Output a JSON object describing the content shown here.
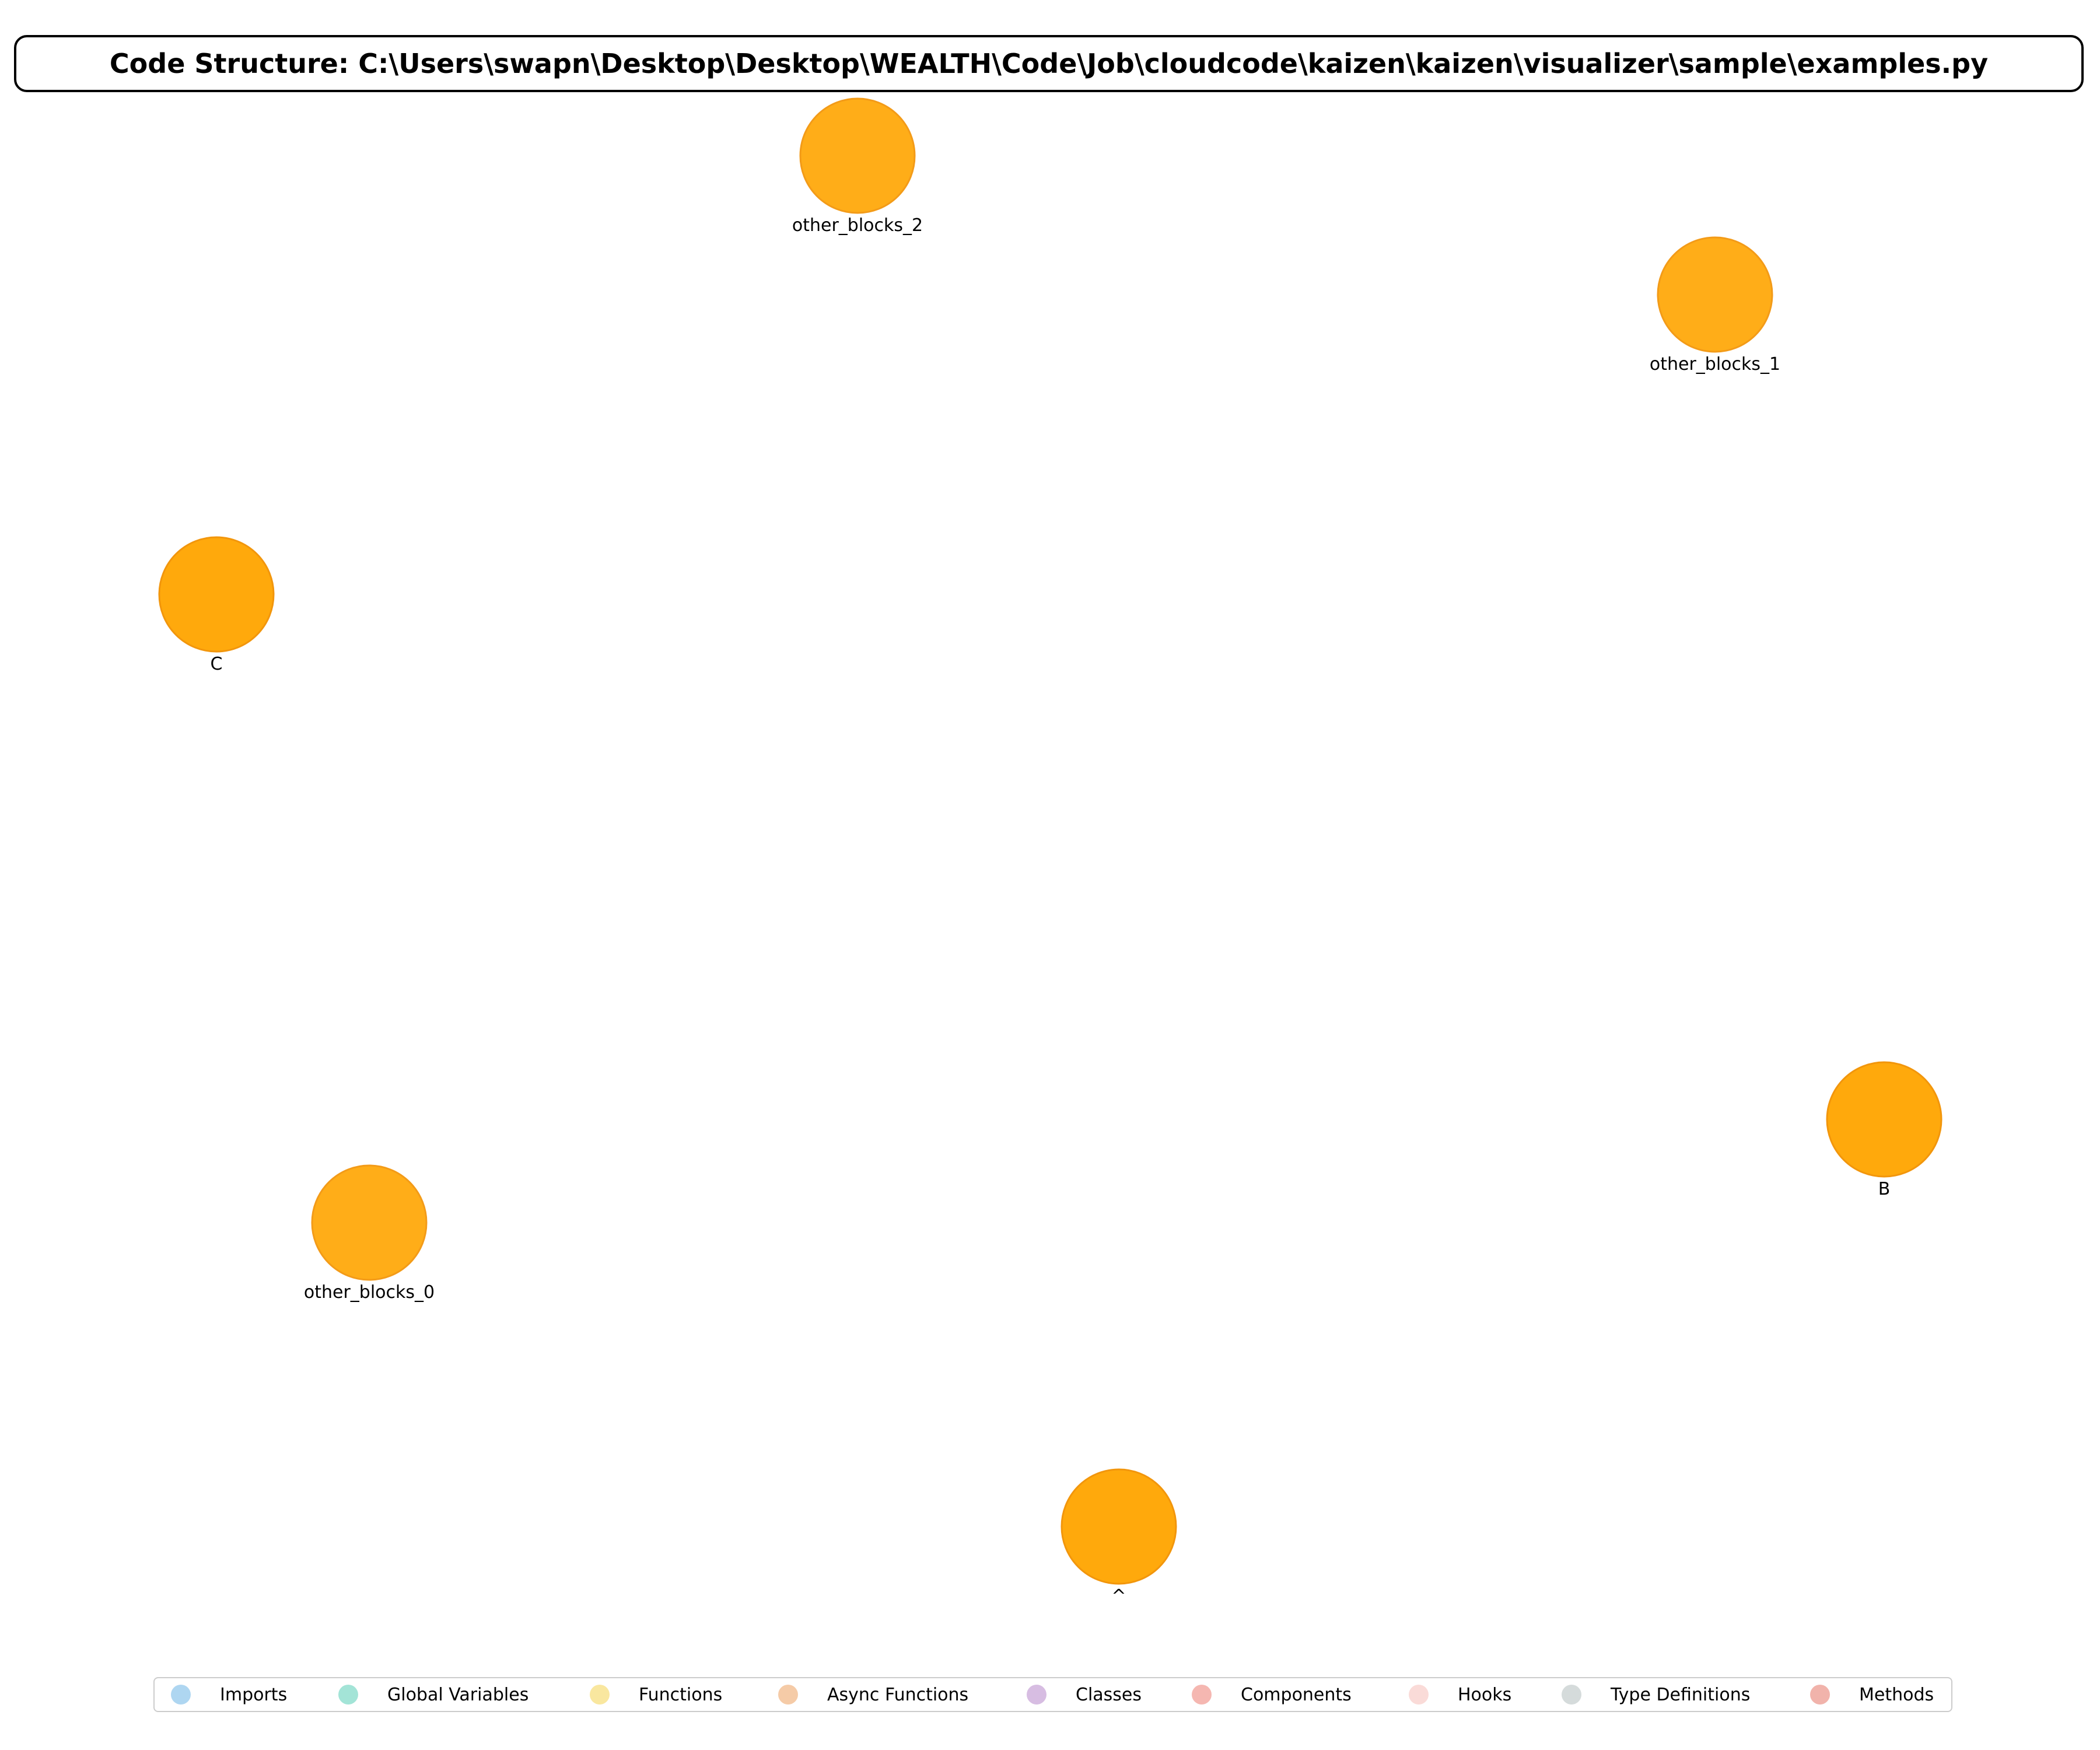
{
  "title": "Code Structure: C:\\Users\\swapn\\Desktop\\Desktop\\WEALTH\\Code\\Job\\cloudcode\\kaizen\\kaizen\\visualizer\\sample\\examples.py",
  "node_color": "#ffa500",
  "node_stroke": "#f29100",
  "nodes": [
    {
      "label": "other_blocks_2"
    },
    {
      "label": "other_blocks_1"
    },
    {
      "label": "C"
    },
    {
      "label": "B"
    },
    {
      "label": "other_blocks_0"
    },
    {
      "label": "^"
    }
  ],
  "legend": [
    {
      "label": "Imports",
      "color": "#aed6f1"
    },
    {
      "label": "Global Variables",
      "color": "#a3e4d7"
    },
    {
      "label": "Functions",
      "color": "#f9e79f"
    },
    {
      "label": "Async Functions",
      "color": "#f5cba7"
    },
    {
      "label": "Classes",
      "color": "#d7bde2"
    },
    {
      "label": "Components",
      "color": "#f5b7b1"
    },
    {
      "label": "Hooks",
      "color": "#fadbd8"
    },
    {
      "label": "Type Definitions",
      "color": "#d5dbdb"
    },
    {
      "label": "Methods",
      "color": "#f1b3ab"
    }
  ]
}
